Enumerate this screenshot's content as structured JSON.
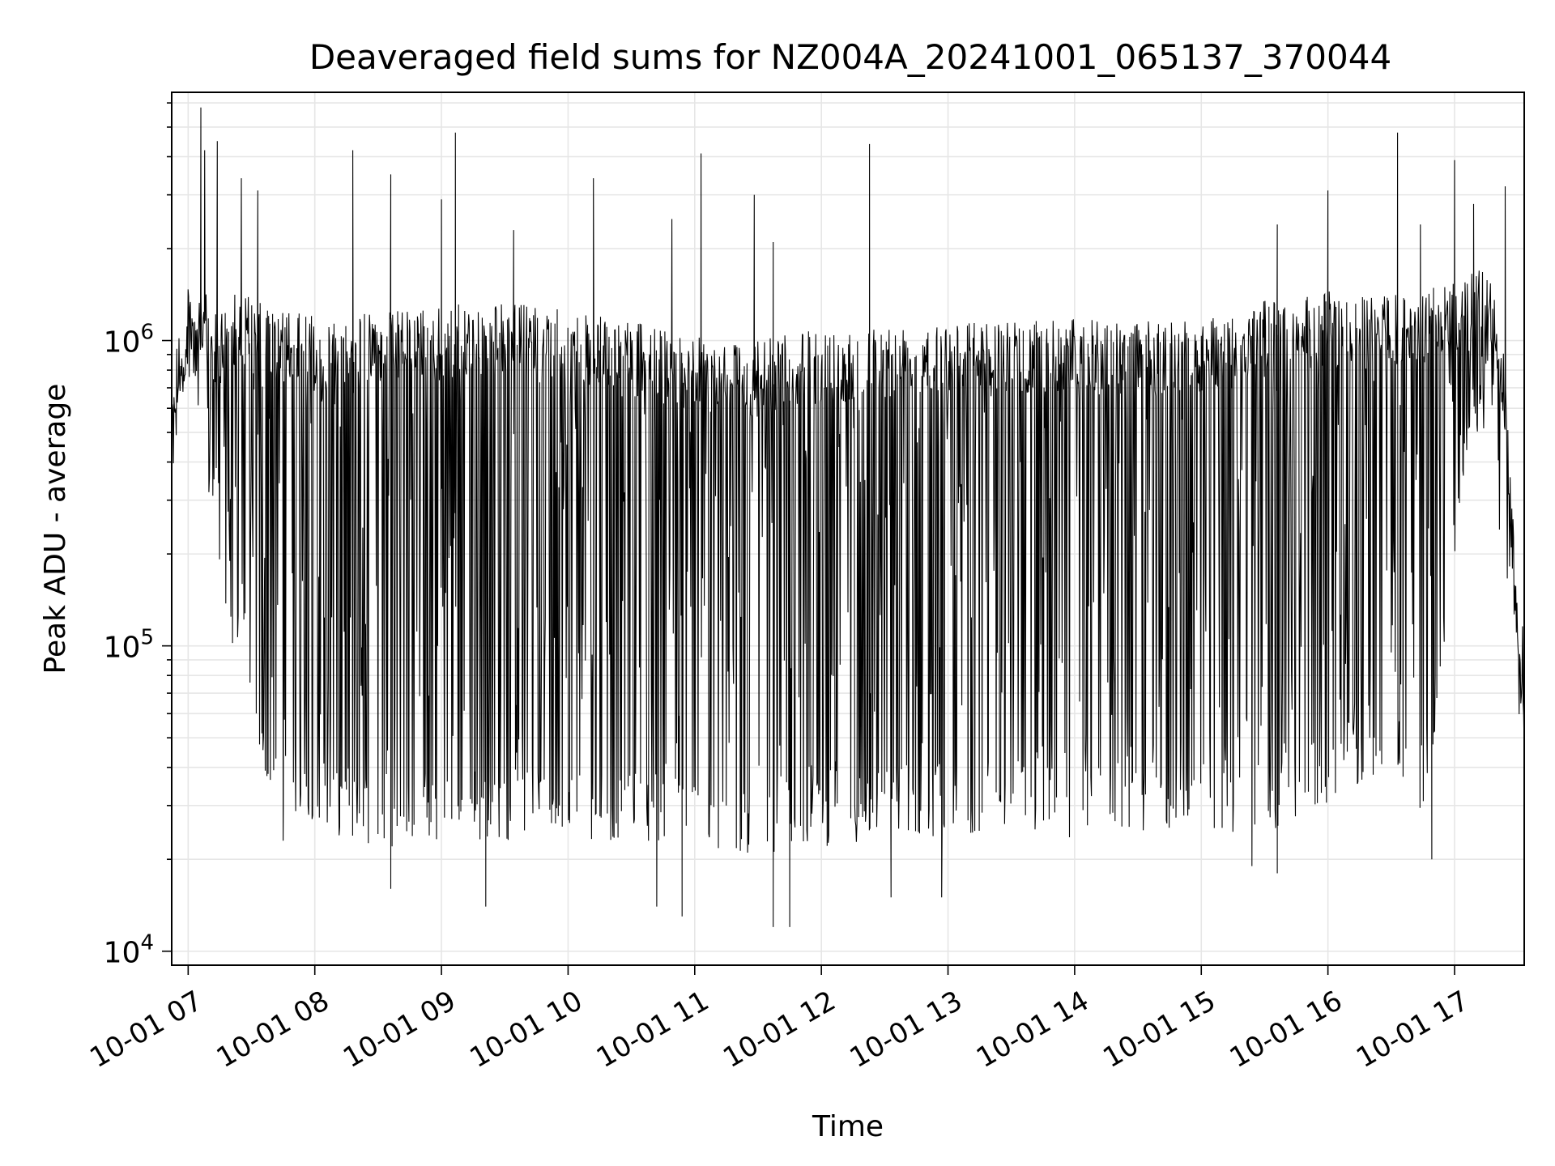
{
  "chart_data": {
    "type": "line",
    "title": "Deaveraged field sums for NZ004A_20241001_065137_370044",
    "xlabel": "Time",
    "ylabel": "Peak ADU - average",
    "yscale": "log",
    "ylim": [
      9000,
      6500000
    ],
    "xlim_hours": [
      6.87,
      17.55
    ],
    "y_ticks": [
      {
        "value": 10000,
        "base": "10",
        "exp": "4"
      },
      {
        "value": 100000,
        "base": "10",
        "exp": "5"
      },
      {
        "value": 1000000,
        "base": "10",
        "exp": "6"
      }
    ],
    "x_ticks": [
      {
        "hour": 7,
        "label": "10-01 07"
      },
      {
        "hour": 8,
        "label": "10-01 08"
      },
      {
        "hour": 9,
        "label": "10-01 09"
      },
      {
        "hour": 10,
        "label": "10-01 10"
      },
      {
        "hour": 11,
        "label": "10-01 11"
      },
      {
        "hour": 12,
        "label": "10-01 12"
      },
      {
        "hour": 13,
        "label": "10-01 13"
      },
      {
        "hour": 14,
        "label": "10-01 14"
      },
      {
        "hour": 15,
        "label": "10-01 15"
      },
      {
        "hour": 16,
        "label": "10-01 16"
      },
      {
        "hour": 17,
        "label": "10-01 17"
      }
    ],
    "grid": true,
    "line_color": "#000000",
    "envelope": {
      "x_hours": [
        6.87,
        7.0,
        7.1,
        7.2,
        7.4,
        7.6,
        8.0,
        8.5,
        9.0,
        9.5,
        10.0,
        10.5,
        11.0,
        11.5,
        12.0,
        12.5,
        13.0,
        13.5,
        14.0,
        14.5,
        15.0,
        15.5,
        16.0,
        16.5,
        16.8,
        17.0,
        17.1,
        17.2,
        17.3,
        17.4,
        17.5,
        17.55
      ],
      "upper": [
        600000,
        1500000,
        1600000,
        1200000,
        1500000,
        1300000,
        1200000,
        1250000,
        1300000,
        1350000,
        1250000,
        1150000,
        1050000,
        1000000,
        1100000,
        1150000,
        1200000,
        1150000,
        1200000,
        1150000,
        1200000,
        1350000,
        1450000,
        1400000,
        1500000,
        1600000,
        1700000,
        1700000,
        1600000,
        900000,
        120000,
        60000
      ],
      "lower": [
        500000,
        800000,
        400000,
        200000,
        80000,
        30000,
        25000,
        22000,
        22000,
        23000,
        24000,
        22000,
        21000,
        20000,
        22000,
        23000,
        24000,
        25000,
        23000,
        24000,
        25000,
        24000,
        30000,
        40000,
        25000,
        200000,
        400000,
        500000,
        500000,
        120000,
        90000,
        60000
      ]
    },
    "spikes": [
      {
        "hour": 7.1,
        "value": 5800000
      },
      {
        "hour": 7.13,
        "value": 4200000
      },
      {
        "hour": 7.23,
        "value": 4500000
      },
      {
        "hour": 7.42,
        "value": 3400000
      },
      {
        "hour": 7.55,
        "value": 3100000
      },
      {
        "hour": 8.3,
        "value": 4200000
      },
      {
        "hour": 8.6,
        "value": 3500000
      },
      {
        "hour": 9.0,
        "value": 2900000
      },
      {
        "hour": 9.11,
        "value": 4800000
      },
      {
        "hour": 9.57,
        "value": 2300000
      },
      {
        "hour": 10.2,
        "value": 3400000
      },
      {
        "hour": 10.82,
        "value": 2500000
      },
      {
        "hour": 11.05,
        "value": 4100000
      },
      {
        "hour": 11.47,
        "value": 3000000
      },
      {
        "hour": 11.62,
        "value": 2100000
      },
      {
        "hour": 12.38,
        "value": 4400000
      },
      {
        "hour": 15.6,
        "value": 2400000
      },
      {
        "hour": 16.0,
        "value": 3100000
      },
      {
        "hour": 16.55,
        "value": 4800000
      },
      {
        "hour": 16.73,
        "value": 2400000
      },
      {
        "hour": 17.0,
        "value": 3900000
      },
      {
        "hour": 17.15,
        "value": 2800000
      },
      {
        "hour": 17.4,
        "value": 3200000
      }
    ],
    "dips": [
      {
        "hour": 7.75,
        "value": 23000
      },
      {
        "hour": 8.6,
        "value": 16000
      },
      {
        "hour": 9.35,
        "value": 14000
      },
      {
        "hour": 10.7,
        "value": 14000
      },
      {
        "hour": 10.9,
        "value": 13000
      },
      {
        "hour": 11.62,
        "value": 12000
      },
      {
        "hour": 11.75,
        "value": 12000
      },
      {
        "hour": 12.55,
        "value": 15000
      },
      {
        "hour": 12.95,
        "value": 15000
      },
      {
        "hour": 15.4,
        "value": 19000
      },
      {
        "hour": 15.6,
        "value": 18000
      },
      {
        "hour": 16.82,
        "value": 20000
      }
    ]
  }
}
